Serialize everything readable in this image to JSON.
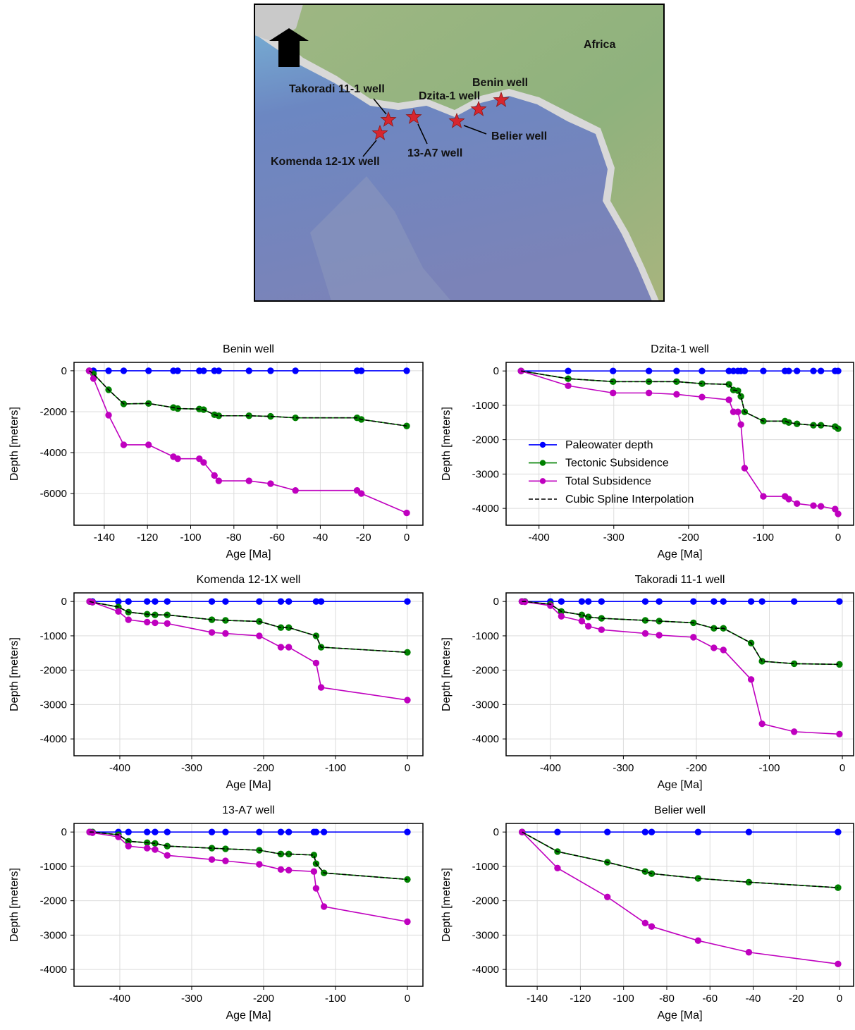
{
  "map": {
    "region_label": "Africa",
    "wells": [
      "Benin well",
      "Takoradi 11-1 well",
      "Dzita-1 well",
      "Belier well",
      "13-A7 well",
      "Komenda 12-1X well"
    ]
  },
  "chart_data": [
    {
      "type": "line",
      "title": "Benin well",
      "xlabel": "Age [Ma]",
      "ylabel": "Depth [meters]",
      "grid": true,
      "xlim": [
        -154,
        7.5
      ],
      "xticks": [
        -140,
        -120,
        -100,
        -80,
        -60,
        -40,
        -20,
        0
      ],
      "ylim": [
        -7550,
        410
      ],
      "yticks": [
        -6000,
        -4000,
        -2000,
        0
      ],
      "x": [
        -147,
        -145,
        -138,
        -131,
        -119.5,
        -108,
        -106,
        -96,
        -94,
        -89,
        -87,
        -73,
        -63,
        -51.5,
        -23,
        -21,
        0
      ],
      "series": [
        {
          "color": "#0000ff",
          "marker": true,
          "dashed": false,
          "values": [
            0,
            0,
            0,
            0,
            0,
            0,
            0,
            0,
            0,
            0,
            0,
            0,
            0,
            0,
            0,
            0,
            0
          ]
        },
        {
          "color": "#008000",
          "marker": true,
          "dashed": false,
          "values": [
            0,
            -150,
            -930,
            -1620,
            -1600,
            -1800,
            -1850,
            -1870,
            -1900,
            -2150,
            -2200,
            -2200,
            -2230,
            -2300,
            -2300,
            -2380,
            -2700
          ]
        },
        {
          "color": "#bf00bf",
          "marker": true,
          "dashed": false,
          "values": [
            0,
            -380,
            -2170,
            -3620,
            -3620,
            -4200,
            -4300,
            -4300,
            -4480,
            -5120,
            -5380,
            -5380,
            -5520,
            -5850,
            -5850,
            -6000,
            -6950
          ]
        },
        {
          "color": "#000000",
          "marker": false,
          "dashed": true,
          "values": [
            0,
            -150,
            -930,
            -1620,
            -1600,
            -1800,
            -1850,
            -1870,
            -1900,
            -2150,
            -2200,
            -2200,
            -2230,
            -2300,
            -2300,
            -2380,
            -2700
          ]
        }
      ]
    },
    {
      "type": "line",
      "title": "Dzita-1 well",
      "xlabel": "Age [Ma]",
      "ylabel": "Depth [meters]",
      "grid": true,
      "legend": "lower left",
      "xlim": [
        -444,
        20.7
      ],
      "xticks": [
        -400,
        -300,
        -200,
        -100,
        0
      ],
      "ylim": [
        -4490,
        250
      ],
      "yticks": [
        -4000,
        -3000,
        -2000,
        -1000,
        0
      ],
      "x": [
        -424,
        -361,
        -301,
        -253,
        -216,
        -182,
        -146,
        -140,
        -134,
        -130,
        -125,
        -100,
        -71,
        -66,
        -55,
        -33,
        -23,
        -4,
        0
      ],
      "series": [
        {
          "name": "Paleowater depth",
          "color": "#0000ff",
          "marker": true,
          "dashed": false,
          "values": [
            0,
            0,
            0,
            0,
            0,
            0,
            0,
            0,
            0,
            0,
            0,
            0,
            0,
            0,
            0,
            0,
            0,
            0,
            0
          ]
        },
        {
          "name": "Tectonic Subsidence",
          "color": "#008000",
          "marker": true,
          "dashed": false,
          "values": [
            0,
            -225,
            -310,
            -310,
            -310,
            -370,
            -390,
            -555,
            -575,
            -740,
            -1190,
            -1460,
            -1460,
            -1500,
            -1540,
            -1580,
            -1580,
            -1620,
            -1680
          ]
        },
        {
          "name": "Total Subsidence",
          "color": "#bf00bf",
          "marker": true,
          "dashed": false,
          "values": [
            0,
            -430,
            -640,
            -640,
            -680,
            -760,
            -840,
            -1190,
            -1190,
            -1560,
            -2830,
            -3650,
            -3650,
            -3730,
            -3860,
            -3920,
            -3940,
            -4020,
            -4160
          ]
        },
        {
          "name": "Cubic Spline Interpolation",
          "color": "#000000",
          "marker": false,
          "dashed": true,
          "values": [
            0,
            -225,
            -310,
            -310,
            -310,
            -370,
            -390,
            -555,
            -575,
            -740,
            -1190,
            -1460,
            -1460,
            -1500,
            -1540,
            -1580,
            -1580,
            -1620,
            -1680
          ]
        }
      ]
    },
    {
      "type": "line",
      "title": "Komenda 12-1X well",
      "xlabel": "Age [Ma]",
      "ylabel": "Depth [meters]",
      "grid": true,
      "xlim": [
        -463.7,
        21.6
      ],
      "xticks": [
        -400,
        -300,
        -200,
        -100,
        0
      ],
      "ylim": [
        -4490,
        250
      ],
      "yticks": [
        -4000,
        -3000,
        -2000,
        -1000,
        0
      ],
      "x": [
        -442,
        -438,
        -402,
        -388,
        -362,
        -351,
        -334,
        -272,
        -253,
        -206,
        -176,
        -165,
        -127,
        -120,
        0
      ],
      "series": [
        {
          "color": "#0000ff",
          "marker": true,
          "dashed": false,
          "values": [
            0,
            0,
            0,
            0,
            0,
            0,
            0,
            0,
            0,
            0,
            0,
            0,
            0,
            0,
            0
          ]
        },
        {
          "color": "#008000",
          "marker": true,
          "dashed": false,
          "values": [
            0,
            -20,
            -160,
            -310,
            -370,
            -390,
            -390,
            -530,
            -550,
            -580,
            -760,
            -760,
            -1000,
            -1330,
            -1480
          ]
        },
        {
          "color": "#bf00bf",
          "marker": true,
          "dashed": false,
          "values": [
            0,
            -20,
            -290,
            -530,
            -600,
            -620,
            -640,
            -900,
            -930,
            -1000,
            -1330,
            -1330,
            -1790,
            -2500,
            -2870
          ]
        },
        {
          "color": "#000000",
          "marker": false,
          "dashed": true,
          "values": [
            0,
            -20,
            -160,
            -310,
            -370,
            -390,
            -390,
            -530,
            -550,
            -580,
            -760,
            -760,
            -1000,
            -1330,
            -1480
          ]
        }
      ]
    },
    {
      "type": "line",
      "title": "Takoradi 11-1 well",
      "xlabel": "Age [Ma]",
      "ylabel": "Depth [meters]",
      "grid": true,
      "xlim": [
        -460.7,
        15.4
      ],
      "xticks": [
        -400,
        -300,
        -200,
        -100,
        0
      ],
      "ylim": [
        -4490,
        250
      ],
      "yticks": [
        -4000,
        -3000,
        -2000,
        -1000,
        0
      ],
      "x": [
        -439,
        -435,
        -400,
        -385,
        -357,
        -348,
        -330,
        -270,
        -251,
        -204,
        -176,
        -163,
        -125,
        -110,
        -66,
        -4
      ],
      "series": [
        {
          "color": "#0000ff",
          "marker": true,
          "dashed": false,
          "values": [
            0,
            0,
            0,
            0,
            0,
            0,
            0,
            0,
            0,
            0,
            0,
            0,
            0,
            0,
            0,
            0
          ]
        },
        {
          "color": "#008000",
          "marker": true,
          "dashed": false,
          "values": [
            0,
            0,
            -80,
            -290,
            -390,
            -450,
            -490,
            -550,
            -570,
            -620,
            -780,
            -780,
            -1210,
            -1740,
            -1810,
            -1830
          ]
        },
        {
          "color": "#bf00bf",
          "marker": true,
          "dashed": false,
          "values": [
            0,
            -10,
            -120,
            -430,
            -570,
            -720,
            -820,
            -930,
            -980,
            -1040,
            -1350,
            -1410,
            -2270,
            -3560,
            -3790,
            -3860
          ]
        },
        {
          "color": "#000000",
          "marker": false,
          "dashed": true,
          "values": [
            0,
            0,
            -80,
            -290,
            -390,
            -450,
            -490,
            -550,
            -570,
            -620,
            -780,
            -780,
            -1210,
            -1740,
            -1810,
            -1830
          ]
        }
      ]
    },
    {
      "type": "line",
      "title": "13-A7 well",
      "xlabel": "Age [Ma]",
      "ylabel": "Depth [meters]",
      "grid": true,
      "xlim": [
        -463.7,
        21.6
      ],
      "xticks": [
        -400,
        -300,
        -200,
        -100,
        0
      ],
      "ylim": [
        -4490,
        250
      ],
      "yticks": [
        -4000,
        -3000,
        -2000,
        -1000,
        0
      ],
      "x": [
        -442,
        -438,
        -402,
        -388,
        -362,
        -351,
        -334,
        -272,
        -253,
        -206,
        -176,
        -165,
        -130,
        -127,
        -116,
        0
      ],
      "series": [
        {
          "color": "#0000ff",
          "marker": true,
          "dashed": false,
          "values": [
            0,
            0,
            0,
            0,
            0,
            0,
            0,
            0,
            0,
            0,
            0,
            0,
            0,
            0,
            0,
            0
          ]
        },
        {
          "color": "#008000",
          "marker": true,
          "dashed": false,
          "values": [
            0,
            0,
            -80,
            -270,
            -310,
            -330,
            -410,
            -470,
            -490,
            -530,
            -640,
            -640,
            -670,
            -920,
            -1190,
            -1380
          ]
        },
        {
          "color": "#bf00bf",
          "marker": true,
          "dashed": false,
          "values": [
            0,
            -20,
            -140,
            -410,
            -470,
            -510,
            -680,
            -800,
            -840,
            -940,
            -1090,
            -1110,
            -1150,
            -1640,
            -2170,
            -2610
          ]
        },
        {
          "color": "#000000",
          "marker": false,
          "dashed": true,
          "values": [
            0,
            0,
            -80,
            -270,
            -310,
            -330,
            -410,
            -470,
            -490,
            -530,
            -640,
            -640,
            -670,
            -920,
            -1190,
            -1380
          ]
        }
      ]
    },
    {
      "type": "line",
      "title": "Belier well",
      "xlabel": "Age [Ma]",
      "ylabel": "Depth [meters]",
      "grid": true,
      "xlim": [
        -154.4,
        6.5
      ],
      "xticks": [
        -140,
        -120,
        -100,
        -80,
        -60,
        -40,
        -20,
        0
      ],
      "ylim": [
        -4490,
        250
      ],
      "yticks": [
        -4000,
        -3000,
        -2000,
        -1000,
        0
      ],
      "x": [
        -147,
        -130.6,
        -107.5,
        -90,
        -87,
        -65.5,
        -42,
        -0.7
      ],
      "series": [
        {
          "color": "#0000ff",
          "marker": true,
          "dashed": false,
          "values": [
            0,
            0,
            0,
            0,
            0,
            0,
            0,
            0
          ]
        },
        {
          "color": "#008000",
          "marker": true,
          "dashed": false,
          "values": [
            0,
            -570,
            -880,
            -1150,
            -1210,
            -1350,
            -1460,
            -1620
          ]
        },
        {
          "color": "#bf00bf",
          "marker": true,
          "dashed": false,
          "values": [
            0,
            -1050,
            -1890,
            -2650,
            -2750,
            -3160,
            -3500,
            -3840
          ]
        },
        {
          "color": "#000000",
          "marker": false,
          "dashed": true,
          "values": [
            0,
            -570,
            -880,
            -1150,
            -1210,
            -1350,
            -1460,
            -1620
          ]
        }
      ]
    }
  ]
}
